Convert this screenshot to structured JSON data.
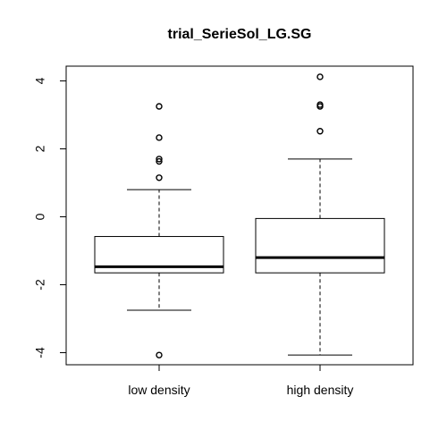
{
  "chart_data": {
    "type": "boxplot",
    "title": "trial_SerieSol_LG.SG",
    "xlabel": "",
    "ylabel": "",
    "categories": [
      "low density",
      "high density"
    ],
    "ylim": [
      -4.4,
      4.4
    ],
    "yticks": [
      -4,
      -2,
      0,
      2,
      4
    ],
    "ytick_labels": [
      "-4",
      "-2",
      "0",
      "2",
      "4"
    ],
    "grid": false,
    "boxes": [
      {
        "category": "low density",
        "whisker_low": -2.75,
        "q1": -1.65,
        "median": -1.47,
        "q3": -0.58,
        "whisker_high": 0.8,
        "outliers": [
          3.25,
          2.33,
          1.7,
          1.63,
          1.15,
          -4.07
        ]
      },
      {
        "category": "high density",
        "whisker_low": -4.07,
        "q1": -1.65,
        "median": -1.2,
        "q3": -0.05,
        "whisker_high": 1.7,
        "outliers": [
          4.12,
          3.3,
          3.25,
          2.52
        ]
      }
    ]
  }
}
